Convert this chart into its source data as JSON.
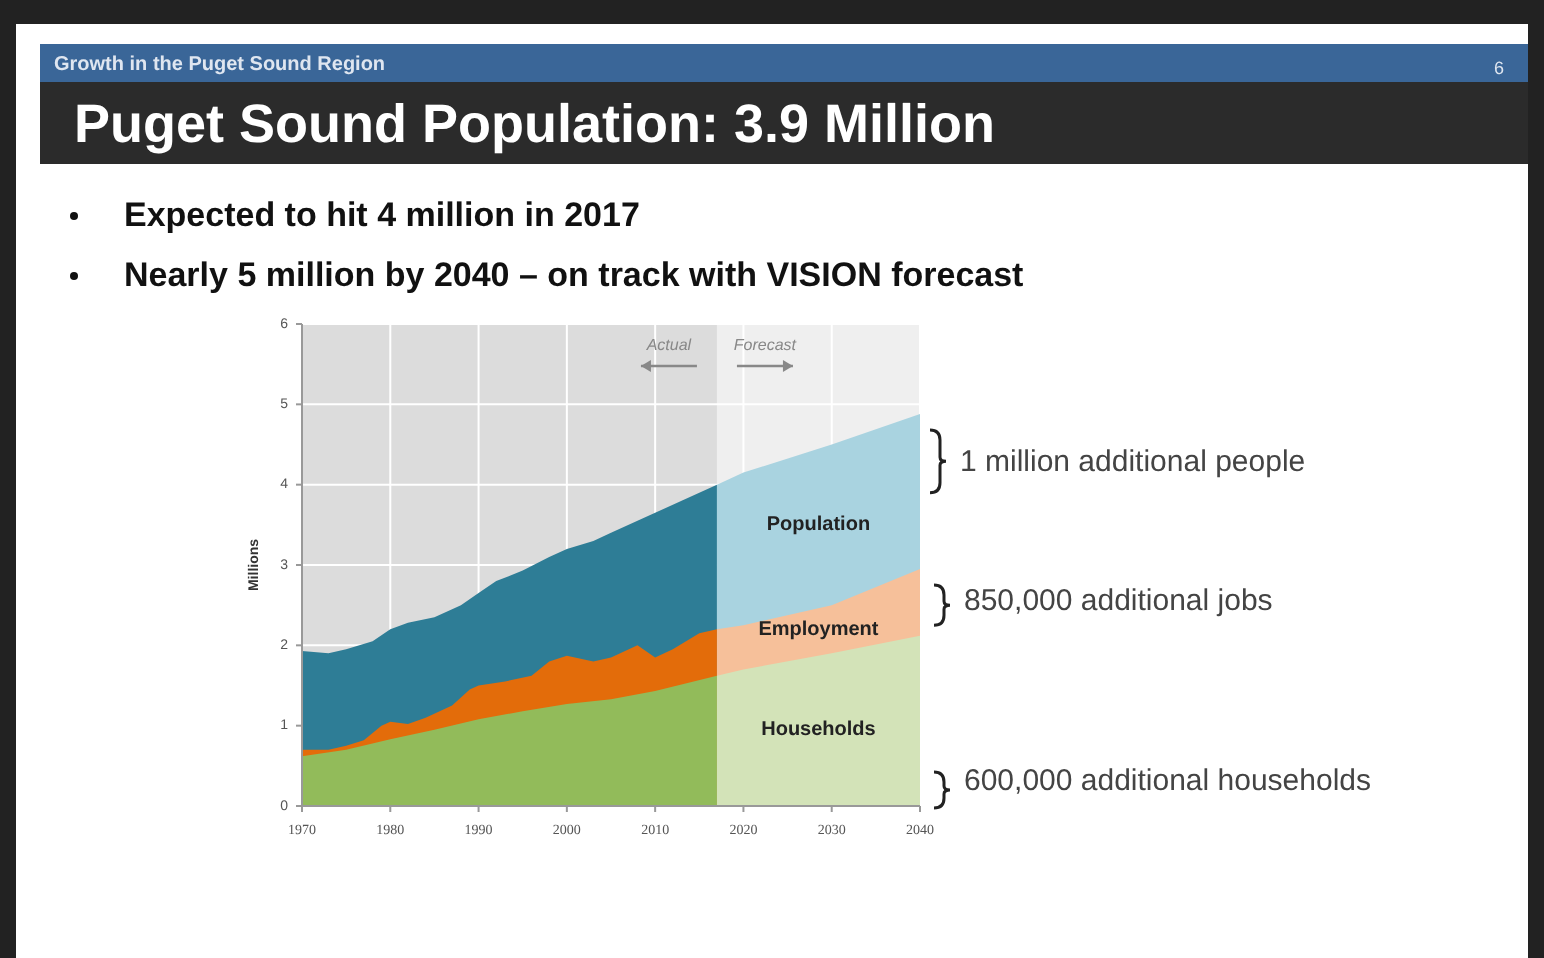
{
  "chart_data": {
    "type": "area",
    "title": "Puget Sound Population: 3.9 Million",
    "subtitle": "Growth in the Puget Sound Region",
    "ylabel": "Millions",
    "annotations": [
      "6",
      "Expected to hit 4 million in 2017",
      "Nearly 5 million by 2040 – on track with VISION forecast",
      "1 million additional people",
      "850,000 additional jobs",
      "600,000 additional households"
    ],
    "series": [
      {
        "color": "#2e7d96",
        "x": [
          1970,
          1973,
          1975,
          1978,
          1980,
          1982,
          1985,
          1988,
          1990,
          1992,
          1995,
          1998,
          2000,
          2003,
          2005,
          2008,
          2010,
          2013,
          2017
        ],
        "values": [
          1.93,
          1.9,
          1.95,
          2.05,
          2.2,
          2.28,
          2.35,
          2.5,
          2.65,
          2.8,
          2.93,
          3.1,
          3.2,
          3.3,
          3.4,
          3.55,
          3.65,
          3.8,
          4.0
        ]
      },
      {
        "name": "Population",
        "color": "#a9d3e0",
        "x": [
          2017,
          2020,
          2030,
          2040
        ],
        "values": [
          4.0,
          4.15,
          4.5,
          4.88
        ]
      },
      {
        "color": "#e36c0a",
        "x": [
          1970,
          1973,
          1975,
          1977,
          1979,
          1980,
          1982,
          1984,
          1987,
          1989,
          1990,
          1993,
          1996,
          1998,
          2000,
          2003,
          2005,
          2008,
          2010,
          2012,
          2015,
          2017
        ],
        "values": [
          0.7,
          0.7,
          0.75,
          0.82,
          1.0,
          1.05,
          1.02,
          1.1,
          1.25,
          1.45,
          1.5,
          1.55,
          1.62,
          1.8,
          1.87,
          1.8,
          1.85,
          2.0,
          1.85,
          1.95,
          2.15,
          2.2
        ]
      },
      {
        "name": "Employment",
        "color": "#f6c09a",
        "x": [
          2017,
          2020,
          2030,
          2040
        ],
        "values": [
          2.2,
          2.25,
          2.5,
          2.95
        ]
      },
      {
        "color": "#92bb5a",
        "x": [
          1970,
          1975,
          1980,
          1985,
          1990,
          1995,
          2000,
          2005,
          2010,
          2017
        ],
        "values": [
          0.62,
          0.7,
          0.83,
          0.95,
          1.08,
          1.18,
          1.27,
          1.33,
          1.43,
          1.62
        ]
      },
      {
        "name": "Households",
        "color": "#d3e3b8",
        "x": [
          2017,
          2020,
          2030,
          2040
        ],
        "values": [
          1.62,
          1.7,
          1.9,
          2.12
        ]
      }
    ],
    "bands": [
      {
        "axis": "x",
        "from": 1970,
        "to": 2017,
        "label": "Actual",
        "color": "#dcdcdc"
      },
      {
        "axis": "x",
        "from": 2017,
        "to": 2040,
        "label": "Forecast",
        "color": "#efefef"
      }
    ],
    "xlim": [
      1970,
      2040
    ],
    "xticks": [
      1970,
      1980,
      1990,
      2000,
      2010,
      2020,
      2030,
      2040
    ],
    "ylim": [
      0,
      6
    ],
    "yticks": [
      0,
      1,
      2,
      3,
      4,
      5,
      6
    ],
    "grid": true
  }
}
